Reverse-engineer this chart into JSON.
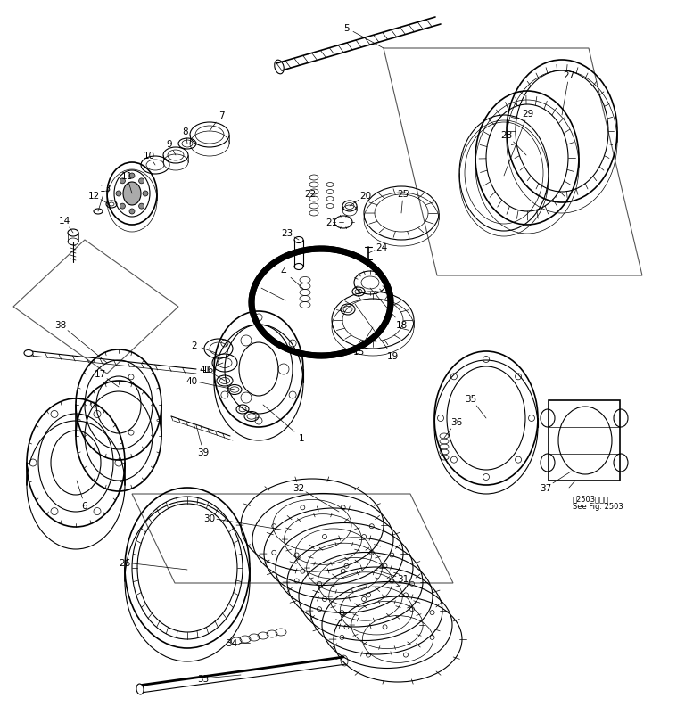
{
  "bg_color": "#ffffff",
  "line_color": "#000000",
  "fig_width": 7.68,
  "fig_height": 8.12,
  "dpi": 100,
  "note_line1": "第2503図参照",
  "note_line2": "See Fig. 2503"
}
